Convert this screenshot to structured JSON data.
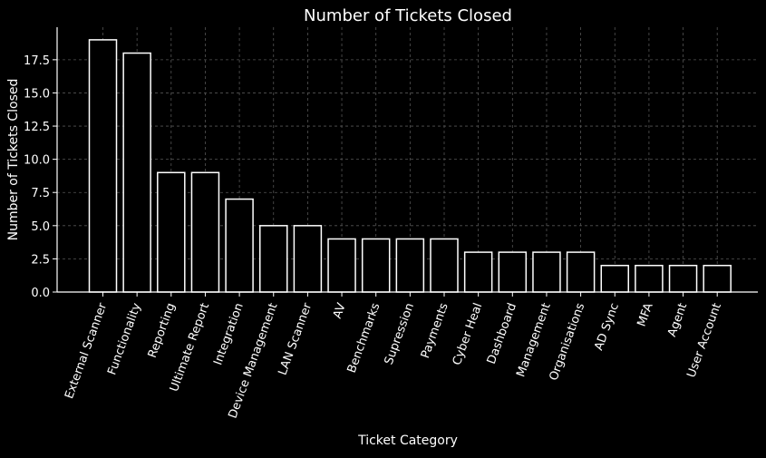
{
  "chart_data": {
    "type": "bar",
    "title": "Number of Tickets Closed",
    "xlabel": "Ticket Category",
    "ylabel": "Number of Tickets Closed",
    "categories": [
      "External Scanner",
      "Functionality",
      "Reporting",
      "Ultimate Report",
      "Integration",
      "Device Management",
      "LAN Scanner",
      "AV",
      "Benchmarks",
      "Supression",
      "Payments",
      "Cyber Heal",
      "Dashboard",
      "Management",
      "Organisations",
      "AD Sync",
      "MFA",
      "Agent",
      "User Account"
    ],
    "values": [
      19,
      18,
      9,
      9,
      7,
      5,
      5,
      4,
      4,
      4,
      4,
      3,
      3,
      3,
      3,
      2,
      2,
      2,
      2
    ],
    "ylim": [
      0,
      19.95
    ],
    "yticks": [
      "0.0",
      "2.5",
      "5.0",
      "7.5",
      "10.0",
      "12.5",
      "15.0",
      "17.5"
    ],
    "grid": true,
    "colors": {
      "background": "#000000",
      "bar_fill": "#000000",
      "bar_edge": "#ffffff",
      "axis": "#ffffff",
      "text": "#ffffff",
      "grid": "#555555"
    }
  }
}
